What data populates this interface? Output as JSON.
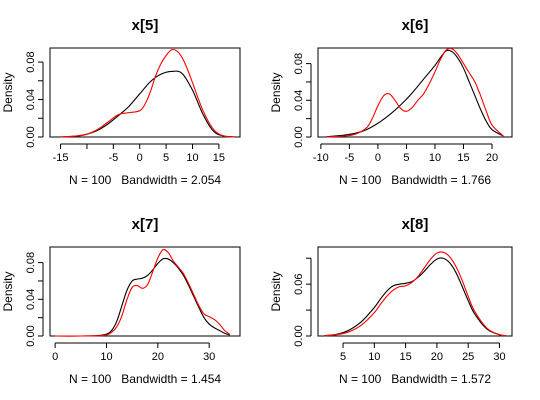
{
  "chart_data": [
    {
      "type": "line",
      "title": "x[5]",
      "xlabel": "N = 100   Bandwidth = 2.054",
      "ylabel": "Density",
      "xlim": [
        -17,
        19
      ],
      "ylim": [
        0,
        0.095
      ],
      "xticks": [
        -15,
        -10,
        -5,
        0,
        5,
        10,
        15
      ],
      "xticklabels": [
        "-15",
        "",
        "-5",
        "0",
        "5",
        "10",
        "15"
      ],
      "yticks": [
        0.0,
        0.04,
        0.08
      ],
      "yminorticks": [
        0.02,
        0.06
      ],
      "yticklabels": [
        "0.00",
        "0.04",
        "0.08"
      ],
      "series": [
        {
          "color": "#000000",
          "x": [
            -15,
            -12,
            -10,
            -8,
            -6,
            -4,
            -2,
            0,
            2,
            4,
            6,
            8,
            10,
            12,
            14,
            16,
            18
          ],
          "y": [
            0.0001,
            0.001,
            0.003,
            0.007,
            0.014,
            0.023,
            0.033,
            0.046,
            0.059,
            0.067,
            0.07,
            0.068,
            0.05,
            0.024,
            0.006,
            0.001,
            0.0001
          ]
        },
        {
          "color": "#ff0000",
          "x": [
            -15,
            -12,
            -10,
            -8,
            -6,
            -4,
            -2,
            0,
            1,
            2,
            3,
            4,
            5,
            6,
            7,
            8,
            9,
            10,
            12,
            14,
            16,
            18
          ],
          "y": [
            0.0001,
            0.001,
            0.003,
            0.008,
            0.016,
            0.024,
            0.026,
            0.028,
            0.035,
            0.048,
            0.065,
            0.078,
            0.087,
            0.093,
            0.092,
            0.085,
            0.073,
            0.058,
            0.028,
            0.008,
            0.001,
            0.0001
          ]
        }
      ]
    },
    {
      "type": "line",
      "title": "x[6]",
      "xlabel": "N = 100   Bandwidth = 1.766",
      "ylabel": "Density",
      "xlim": [
        -10.5,
        23.5
      ],
      "ylim": [
        0,
        0.097
      ],
      "xticks": [
        -10,
        -5,
        0,
        5,
        10,
        15,
        20
      ],
      "xticklabels": [
        "-10",
        "-5",
        "0",
        "5",
        "10",
        "15",
        "20"
      ],
      "yticks": [
        0.0,
        0.04,
        0.08
      ],
      "yminorticks": [
        0.02,
        0.06
      ],
      "yticklabels": [
        "0.00",
        "0.04",
        "0.08"
      ],
      "series": [
        {
          "color": "#000000",
          "x": [
            -9,
            -6,
            -4,
            -2,
            0,
            2,
            4,
            6,
            8,
            10,
            11,
            12,
            13,
            14,
            15,
            16,
            17,
            18,
            19,
            20,
            22
          ],
          "y": [
            0.0003,
            0.002,
            0.004,
            0.008,
            0.015,
            0.024,
            0.035,
            0.048,
            0.063,
            0.078,
            0.087,
            0.094,
            0.093,
            0.086,
            0.075,
            0.06,
            0.045,
            0.03,
            0.017,
            0.008,
            0.001
          ]
        },
        {
          "color": "#ff0000",
          "x": [
            -9,
            -6,
            -4,
            -2,
            -1,
            0,
            1,
            2,
            3,
            4,
            5,
            6,
            7,
            8,
            9,
            10,
            11,
            12,
            13,
            14,
            15,
            16,
            17,
            18,
            19,
            20,
            22
          ],
          "y": [
            0.0001,
            0.001,
            0.003,
            0.01,
            0.02,
            0.034,
            0.045,
            0.047,
            0.04,
            0.031,
            0.028,
            0.032,
            0.04,
            0.047,
            0.058,
            0.071,
            0.085,
            0.095,
            0.096,
            0.09,
            0.08,
            0.07,
            0.06,
            0.045,
            0.028,
            0.013,
            0.001
          ]
        }
      ]
    },
    {
      "type": "line",
      "title": "x[7]",
      "xlabel": "N = 100   Bandwidth = 1.454",
      "ylabel": "Density",
      "xlim": [
        -1,
        36
      ],
      "ylim": [
        0,
        0.097
      ],
      "xticks": [
        0,
        10,
        20,
        30
      ],
      "xticklabels": [
        "0",
        "10",
        "20",
        "30"
      ],
      "yticks": [
        0.0,
        0.04,
        0.08
      ],
      "yminorticks": [
        0.02,
        0.06
      ],
      "yticklabels": [
        "0.00",
        "0.04",
        "0.08"
      ],
      "series": [
        {
          "color": "#000000",
          "x": [
            0,
            5,
            8,
            10,
            11,
            12,
            13,
            14,
            15,
            16,
            17,
            18,
            19,
            20,
            21,
            22,
            23,
            24,
            25,
            26,
            27,
            28,
            29,
            30,
            31,
            32,
            33,
            34
          ],
          "y": [
            0,
            0,
            0.0003,
            0.002,
            0.006,
            0.016,
            0.033,
            0.05,
            0.06,
            0.062,
            0.063,
            0.066,
            0.072,
            0.079,
            0.084,
            0.084,
            0.08,
            0.074,
            0.066,
            0.055,
            0.043,
            0.031,
            0.02,
            0.013,
            0.009,
            0.006,
            0.003,
            0.001
          ]
        },
        {
          "color": "#ff0000",
          "x": [
            0,
            5,
            8,
            10,
            11,
            12,
            13,
            14,
            15,
            16,
            17,
            18,
            19,
            20,
            21,
            22,
            23,
            24,
            25,
            26,
            27,
            28,
            29,
            30,
            31,
            32,
            33,
            34
          ],
          "y": [
            0,
            0,
            0.0002,
            0.001,
            0.004,
            0.01,
            0.022,
            0.04,
            0.053,
            0.055,
            0.052,
            0.056,
            0.07,
            0.085,
            0.094,
            0.091,
            0.082,
            0.075,
            0.068,
            0.057,
            0.045,
            0.033,
            0.024,
            0.021,
            0.018,
            0.013,
            0.006,
            0.002
          ]
        }
      ]
    },
    {
      "type": "line",
      "title": "x[8]",
      "xlabel": "N = 100   Bandwidth = 1.572",
      "ylabel": "Density",
      "xlim": [
        1,
        32
      ],
      "ylim": [
        0,
        0.103
      ],
      "xticks": [
        5,
        10,
        15,
        20,
        25,
        30
      ],
      "xticklabels": [
        "5",
        "10",
        "15",
        "20",
        "25",
        "30"
      ],
      "yticks": [
        0.0,
        0.03,
        0.06,
        0.09
      ],
      "yminorticks": [],
      "yticklabels": [
        "0.00",
        "",
        "0.06",
        ""
      ],
      "series": [
        {
          "color": "#000000",
          "x": [
            2,
            4,
            6,
            8,
            10,
            11,
            12,
            13,
            14,
            15,
            16,
            17,
            18,
            19,
            20,
            21,
            22,
            23,
            24,
            25,
            26,
            28,
            30,
            31
          ],
          "y": [
            0.0004,
            0.002,
            0.007,
            0.017,
            0.033,
            0.043,
            0.052,
            0.058,
            0.06,
            0.061,
            0.063,
            0.068,
            0.075,
            0.083,
            0.089,
            0.09,
            0.085,
            0.074,
            0.058,
            0.041,
            0.026,
            0.008,
            0.0015,
            0.0005
          ]
        },
        {
          "color": "#ff0000",
          "x": [
            2,
            4,
            6,
            8,
            10,
            11,
            12,
            13,
            14,
            15,
            16,
            17,
            18,
            19,
            20,
            21,
            22,
            23,
            24,
            25,
            26,
            28,
            30,
            31
          ],
          "y": [
            0.0003,
            0.0015,
            0.005,
            0.013,
            0.027,
            0.037,
            0.046,
            0.053,
            0.057,
            0.058,
            0.062,
            0.069,
            0.079,
            0.089,
            0.096,
            0.097,
            0.092,
            0.081,
            0.065,
            0.046,
            0.029,
            0.009,
            0.0015,
            0.0005
          ]
        }
      ]
    }
  ]
}
